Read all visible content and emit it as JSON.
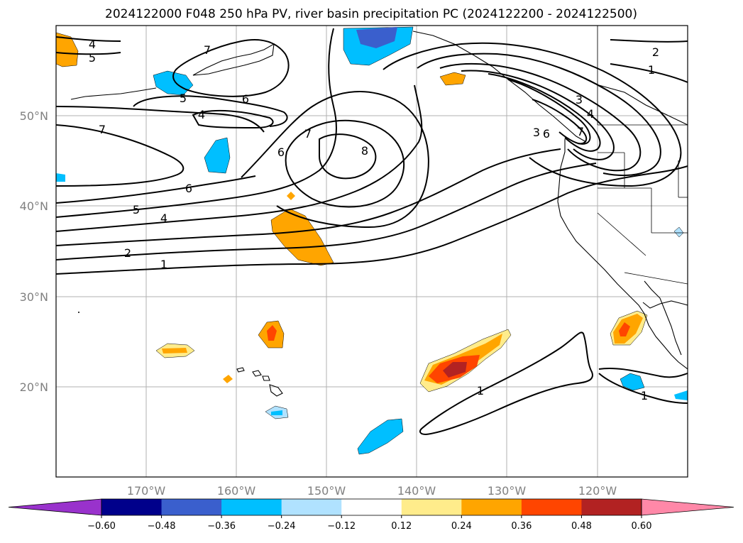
{
  "figure": {
    "title": "2024122000 F048 250 hPa PV, river basin precipitation PC (2024122200 - 2024122500)"
  },
  "map": {
    "projection": "PlateCarree",
    "lon_range": [
      -180,
      -110
    ],
    "lat_range": [
      10,
      60
    ],
    "gridlines": true,
    "lat_labels": [
      "20°N",
      "30°N",
      "40°N",
      "50°N"
    ],
    "lon_labels": [
      "170°W",
      "160°W",
      "150°W",
      "140°W",
      "130°W",
      "120°W"
    ]
  },
  "contours": {
    "field": "250 hPa PV",
    "labels": [
      "4",
      "5",
      "7",
      "5",
      "6",
      "4",
      "7",
      "6",
      "7",
      "8",
      "6",
      "5",
      "4",
      "2",
      "1",
      "2",
      "1",
      "3",
      "4",
      "3",
      "6",
      "7",
      "1",
      "1"
    ]
  },
  "shading": {
    "field": "river basin precipitation PC"
  },
  "colorbar": {
    "ticks": [
      "−0.60",
      "−0.48",
      "−0.36",
      "−0.24",
      "−0.12",
      "0.12",
      "0.24",
      "0.36",
      "0.48",
      "0.60"
    ],
    "colors": [
      "#9932CC",
      "#00008B",
      "#3A5FCD",
      "#00BFFF",
      "#B0E2FF",
      "#FFFFFF",
      "#FFEC8B",
      "#FFA500",
      "#FF4500",
      "#B22222",
      "#FF88A8"
    ],
    "extend": "both"
  }
}
